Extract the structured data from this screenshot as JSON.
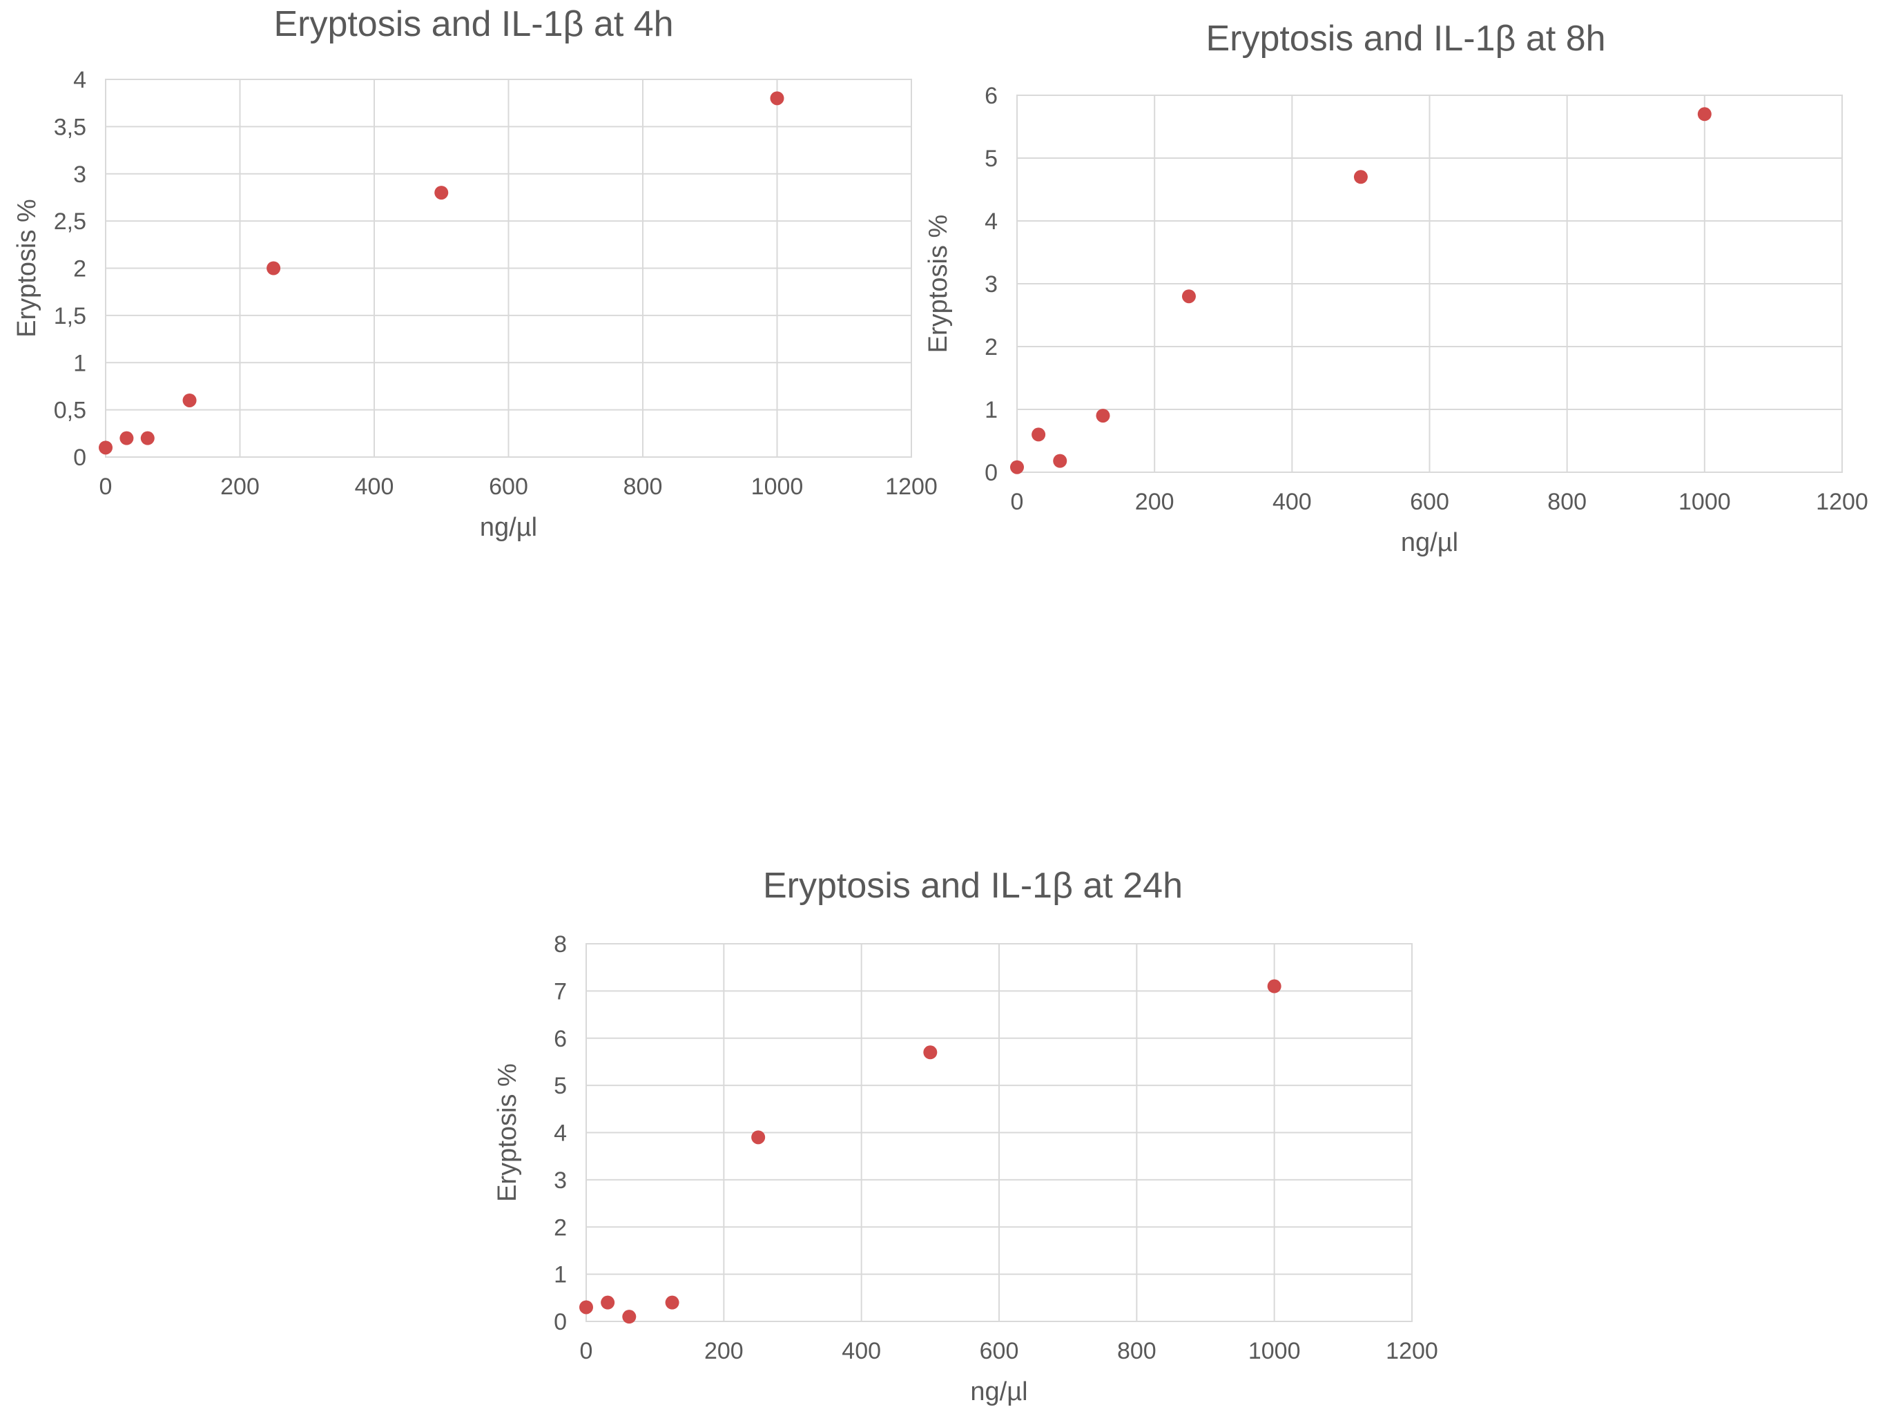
{
  "chart_data": [
    {
      "type": "scatter",
      "title": "Eryptosis and IL-1β at 4h",
      "xlabel": "ng/µl",
      "ylabel": "Eryptosis %",
      "xlim": [
        0,
        1200
      ],
      "ylim": [
        0,
        4
      ],
      "x_ticks": [
        "0",
        "200",
        "400",
        "600",
        "800",
        "1000",
        "1200"
      ],
      "y_ticks": [
        "0",
        "0,5",
        "1",
        "1,5",
        "2",
        "2,5",
        "3",
        "3,5",
        "4"
      ],
      "grid": true,
      "color": "#d04a4a",
      "points": [
        {
          "x": 0,
          "y": 0.1
        },
        {
          "x": 31.25,
          "y": 0.2
        },
        {
          "x": 62.5,
          "y": 0.2
        },
        {
          "x": 125,
          "y": 0.6
        },
        {
          "x": 250,
          "y": 2.0
        },
        {
          "x": 500,
          "y": 2.8
        },
        {
          "x": 1000,
          "y": 3.8
        }
      ]
    },
    {
      "type": "scatter",
      "title": "Eryptosis and IL-1β at 8h",
      "xlabel": "ng/µl",
      "ylabel": "Eryptosis %",
      "xlim": [
        0,
        1200
      ],
      "ylim": [
        0,
        6
      ],
      "x_ticks": [
        "0",
        "200",
        "400",
        "600",
        "800",
        "1000",
        "1200"
      ],
      "y_ticks": [
        "0",
        "1",
        "2",
        "3",
        "4",
        "5",
        "6"
      ],
      "grid": true,
      "color": "#d04a4a",
      "points": [
        {
          "x": 0,
          "y": 0.08
        },
        {
          "x": 31.25,
          "y": 0.6
        },
        {
          "x": 62.5,
          "y": 0.18
        },
        {
          "x": 125,
          "y": 0.9
        },
        {
          "x": 250,
          "y": 2.8
        },
        {
          "x": 500,
          "y": 4.7
        },
        {
          "x": 1000,
          "y": 5.7
        }
      ]
    },
    {
      "type": "scatter",
      "title": "Eryptosis and IL-1β at 24h",
      "xlabel": "ng/µl",
      "ylabel": "Eryptosis %",
      "xlim": [
        0,
        1200
      ],
      "ylim": [
        0,
        8
      ],
      "x_ticks": [
        "0",
        "200",
        "400",
        "600",
        "800",
        "1000",
        "1200"
      ],
      "y_ticks": [
        "0",
        "1",
        "2",
        "3",
        "4",
        "5",
        "6",
        "7",
        "8"
      ],
      "grid": true,
      "color": "#d04a4a",
      "points": [
        {
          "x": 0,
          "y": 0.3
        },
        {
          "x": 31.25,
          "y": 0.4
        },
        {
          "x": 62.5,
          "y": 0.1
        },
        {
          "x": 125,
          "y": 0.4
        },
        {
          "x": 250,
          "y": 3.9
        },
        {
          "x": 500,
          "y": 5.7
        },
        {
          "x": 1000,
          "y": 7.1
        }
      ]
    }
  ]
}
